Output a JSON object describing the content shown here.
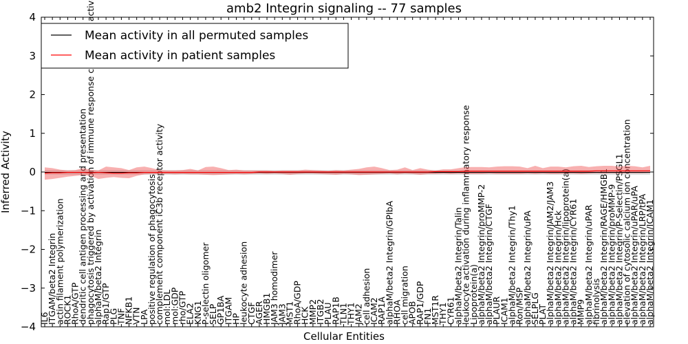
{
  "chart_data": {
    "type": "line",
    "title": "amb2 Integrin signaling -- 77 samples",
    "xlabel": "Cellular Entities",
    "ylabel": "Inferred Activity",
    "ylim": [
      -4,
      4
    ],
    "yticks": [
      -4,
      -3,
      -2,
      -1,
      0,
      1,
      2,
      3,
      4
    ],
    "ytick_labels": [
      "−4",
      "−3",
      "−2",
      "−1",
      "0",
      "1",
      "2",
      "3",
      "4"
    ],
    "legend": {
      "position": "top-left",
      "entries": [
        {
          "label": "Mean activity in all permuted samples",
          "color": "#000000"
        },
        {
          "label": "Mean activity in patient samples",
          "color": "#ff0000"
        }
      ]
    },
    "categories": [
      "IL6",
      "ITGAM/beta2 Integrin",
      "actin filament polymerization",
      "ROCK1",
      "RhoA/GTP",
      "dendritic cell antigen processing and presentation",
      "phagocytosis triggered by activation of immune response cell surface activating receptor",
      "alphaM/beta2 Integrin",
      "Rap1/GTP",
      "PLG",
      "TNF",
      "NFKB1",
      "VTN",
      "LPA",
      "positive regulation of phagocytosis",
      "complement component iC3b receptor activity",
      "mol:LDL",
      "mol:GDP",
      "rho/GTP",
      "ELA2",
      "KNG1",
      "P-selectin oligomer",
      "SELP",
      "GP1BA",
      "ITGAM",
      "HP",
      "leukocyte adhesion",
      "CTGF",
      "AGER",
      "HMGB1",
      "JAM3 homodimer",
      "JAM3",
      "MST1",
      "RhoA/GDP",
      "HCK",
      "MMP2",
      "ITGB2",
      "PLAU",
      "RAP1B",
      "TLN1",
      "THY1",
      "JAM2",
      "cell adhesion",
      "ICAM2",
      "RAP1A",
      "alphaM/beta2 Integrin/GPIbA",
      "RHOA",
      "cell migration",
      "APOB",
      "RAP1/GDP",
      "FN1",
      "MST1R",
      "THY1",
      "CYR61",
      "alphaM/beta2 Integrin/Talin",
      "leukocyte activation during inflammatory response",
      "Lipoprotein(a)",
      "alphaM/beta2 Integrin/proMMP-2",
      "alphaM/beta2 Integrin/CTGF",
      "PLAUR",
      "ICAM1",
      "alphaM/beta2 Integrin/Thy1",
      "Ron/MSP",
      "alphaM/beta2 Integrin/uPA",
      "SELPLG",
      "PLAT",
      "alphaM/beta2 Integrin/JAM2/JAM3",
      "alphaM/beta2 Integrin/Hck",
      "alphaM/beta2 Integrin/lipoprotein(a)",
      "alphaM/beta2 Integrin/CYR61",
      "MMP9",
      "alphaM/beta2 Integrin/uPAR",
      "fibrinolysis",
      "alphaM/beta2 Integrin/RAGE/HMGB1",
      "alphaM/beta2 Integrin/proMMP-9",
      "alphaM/beta2 Integrin/P-Selectin/PSGL1",
      "elevation of cytosolic calcium ion concentration",
      "alphaM/beta2 Integrin/uPAR/uPA",
      "alphaM/beta2 Integrin/LRP/tPA",
      "alphaM/beta2 Integrin/ICAM1"
    ],
    "series": [
      {
        "name": "Mean activity in all permuted samples",
        "color": "#000000",
        "values": [
          -0.01,
          -0.01,
          -0.01,
          -0.01,
          -0.01,
          -0.01,
          -0.01,
          -0.01,
          -0.01,
          -0.01,
          -0.01,
          -0.01,
          -0.01,
          -0.01,
          -0.01,
          -0.01,
          -0.01,
          -0.01,
          -0.01,
          -0.01,
          -0.01,
          -0.01,
          -0.01,
          -0.01,
          -0.01,
          -0.01,
          -0.01,
          -0.01,
          -0.01,
          -0.01,
          -0.01,
          -0.01,
          -0.01,
          -0.01,
          -0.01,
          -0.01,
          -0.01,
          -0.01,
          -0.01,
          -0.01,
          -0.01,
          -0.01,
          -0.01,
          -0.01,
          -0.01,
          -0.01,
          -0.01,
          -0.01,
          -0.01,
          -0.01,
          -0.01,
          -0.01,
          -0.01,
          -0.01,
          -0.01,
          -0.01,
          -0.01,
          -0.01,
          -0.01,
          -0.01,
          -0.01,
          -0.01,
          -0.01,
          -0.01,
          -0.01,
          -0.01,
          -0.01,
          -0.01,
          -0.01,
          -0.01,
          -0.01,
          -0.01,
          -0.01,
          -0.01,
          -0.01,
          -0.01,
          -0.01,
          -0.01,
          -0.01,
          -0.01
        ],
        "band_lower": [
          -0.07,
          -0.07,
          -0.07,
          -0.07,
          -0.07,
          -0.07,
          -0.07,
          -0.07,
          -0.07,
          -0.07,
          -0.07,
          -0.07,
          -0.07,
          -0.07,
          -0.07,
          -0.07,
          -0.07,
          -0.07,
          -0.07,
          -0.07,
          -0.07,
          -0.07,
          -0.07,
          -0.07,
          -0.07,
          -0.07,
          -0.07,
          -0.07,
          -0.07,
          -0.07,
          -0.07,
          -0.07,
          -0.07,
          -0.07,
          -0.07,
          -0.07,
          -0.07,
          -0.07,
          -0.07,
          -0.07,
          -0.07,
          -0.07,
          -0.07,
          -0.07,
          -0.07,
          -0.07,
          -0.07,
          -0.07,
          -0.07,
          -0.07,
          -0.07,
          -0.07,
          -0.07,
          -0.07,
          -0.07,
          -0.07,
          -0.07,
          -0.07,
          -0.07,
          -0.07,
          -0.07,
          -0.07,
          -0.07,
          -0.07,
          -0.07,
          -0.07,
          -0.07,
          -0.07,
          -0.07,
          -0.07,
          -0.07,
          -0.07,
          -0.07,
          -0.07,
          -0.07,
          -0.07,
          -0.07,
          -0.07,
          -0.07,
          -0.07
        ],
        "band_upper": [
          0.05,
          0.05,
          0.05,
          0.05,
          0.05,
          0.05,
          0.05,
          0.05,
          0.05,
          0.05,
          0.05,
          0.05,
          0.05,
          0.05,
          0.05,
          0.05,
          0.05,
          0.05,
          0.05,
          0.05,
          0.05,
          0.05,
          0.05,
          0.05,
          0.05,
          0.05,
          0.05,
          0.05,
          0.05,
          0.05,
          0.05,
          0.05,
          0.05,
          0.05,
          0.05,
          0.05,
          0.05,
          0.05,
          0.05,
          0.05,
          0.05,
          0.05,
          0.05,
          0.05,
          0.05,
          0.05,
          0.05,
          0.05,
          0.05,
          0.05,
          0.05,
          0.05,
          0.05,
          0.05,
          0.05,
          0.05,
          0.05,
          0.05,
          0.05,
          0.05,
          0.05,
          0.05,
          0.05,
          0.05,
          0.05,
          0.05,
          0.05,
          0.05,
          0.05,
          0.05,
          0.05,
          0.05,
          0.05,
          0.05,
          0.05,
          0.05,
          0.05,
          0.05,
          0.05,
          0.05
        ]
      },
      {
        "name": "Mean activity in patient samples",
        "color": "#ff0000",
        "values": [
          -0.03,
          -0.02,
          -0.02,
          -0.01,
          -0.01,
          -0.01,
          -0.02,
          -0.01,
          -0.02,
          -0.03,
          -0.03,
          -0.02,
          -0.02,
          -0.01,
          -0.01,
          -0.01,
          -0.01,
          -0.01,
          -0.01,
          -0.01,
          -0.01,
          -0.01,
          -0.01,
          -0.01,
          -0.01,
          -0.01,
          -0.01,
          -0.01,
          0.0,
          0.0,
          0.0,
          0.0,
          0.0,
          0.0,
          0.0,
          0.0,
          0.0,
          0.0,
          0.0,
          0.0,
          0.0,
          0.0,
          0.0,
          0.0,
          0.0,
          0.0,
          0.0,
          0.0,
          0.0,
          0.0,
          0.0,
          0.01,
          0.01,
          0.01,
          0.01,
          0.02,
          0.02,
          0.02,
          0.02,
          0.02,
          0.02,
          0.02,
          0.02,
          0.02,
          0.02,
          0.02,
          0.02,
          0.02,
          0.02,
          0.02,
          0.02,
          0.02,
          0.03,
          0.03,
          0.03,
          0.03,
          0.03,
          0.03,
          0.03,
          0.03
        ],
        "band_lower": [
          -0.2,
          -0.18,
          -0.15,
          -0.12,
          -0.1,
          -0.08,
          -0.1,
          -0.18,
          -0.15,
          -0.13,
          -0.15,
          -0.16,
          -0.1,
          -0.06,
          -0.05,
          -0.06,
          -0.05,
          -0.06,
          -0.05,
          -0.06,
          -0.06,
          -0.07,
          -0.08,
          -0.07,
          -0.06,
          -0.05,
          -0.06,
          -0.05,
          -0.04,
          -0.05,
          -0.04,
          -0.05,
          -0.07,
          -0.05,
          -0.04,
          -0.04,
          -0.05,
          -0.06,
          -0.07,
          -0.05,
          -0.06,
          -0.08,
          -0.07,
          -0.06,
          -0.05,
          -0.04,
          -0.06,
          -0.04,
          -0.05,
          -0.07,
          -0.05,
          -0.05,
          -0.04,
          -0.05,
          -0.04,
          -0.05,
          -0.05,
          -0.05,
          -0.04,
          -0.05,
          -0.05,
          -0.05,
          -0.05,
          -0.04,
          -0.05,
          -0.04,
          -0.05,
          -0.05,
          -0.04,
          -0.04,
          -0.05,
          -0.04,
          -0.03,
          -0.04,
          -0.03,
          -0.04,
          -0.03,
          -0.03,
          -0.03,
          -0.02
        ],
        "band_upper": [
          0.12,
          0.1,
          0.06,
          0.04,
          0.05,
          0.1,
          0.06,
          0.04,
          0.14,
          0.12,
          0.1,
          0.05,
          0.12,
          0.14,
          0.1,
          0.05,
          0.04,
          0.04,
          0.05,
          0.08,
          0.04,
          0.13,
          0.14,
          0.1,
          0.05,
          0.06,
          0.04,
          0.04,
          0.04,
          0.04,
          0.03,
          0.04,
          0.04,
          0.04,
          0.06,
          0.05,
          0.04,
          0.03,
          0.05,
          0.04,
          0.06,
          0.08,
          0.12,
          0.14,
          0.1,
          0.05,
          0.06,
          0.12,
          0.05,
          0.1,
          0.06,
          0.04,
          0.07,
          0.07,
          0.1,
          0.13,
          0.13,
          0.13,
          0.12,
          0.14,
          0.15,
          0.15,
          0.14,
          0.1,
          0.16,
          0.1,
          0.14,
          0.14,
          0.12,
          0.15,
          0.16,
          0.13,
          0.15,
          0.16,
          0.16,
          0.14,
          0.16,
          0.15,
          0.12,
          0.16
        ]
      }
    ]
  }
}
